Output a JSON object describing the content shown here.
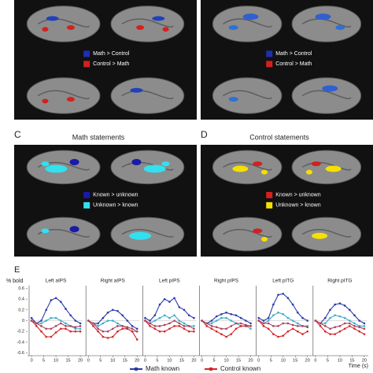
{
  "panels": [
    {
      "legend": [
        {
          "label": "Math > Control",
          "color": "#1f2fb0"
        },
        {
          "label": "Control > Math",
          "color": "#d42020"
        }
      ]
    },
    {
      "legend": [
        {
          "label": "Math > Control",
          "color": "#1f2fb0"
        },
        {
          "label": "Control > Math",
          "color": "#d42020"
        }
      ]
    },
    {
      "label": "C",
      "title": "Math statements",
      "legend": [
        {
          "label": "Known > unknown",
          "color": "#1a1aa8"
        },
        {
          "label": "Unknown > known",
          "color": "#33e0f0"
        }
      ]
    },
    {
      "label": "D",
      "title": "Control statements",
      "legend": [
        {
          "label": "Known > unknown",
          "color": "#d42020"
        },
        {
          "label": "Unknown > known",
          "color": "#f5e000"
        }
      ]
    }
  ],
  "chart_data": {
    "type": "line",
    "label": "E",
    "ylabel": "% bold",
    "xlabel": "Time (s)",
    "x": [
      0,
      2,
      4,
      6,
      8,
      10,
      12,
      14,
      16,
      18,
      20
    ],
    "xlim": [
      -1,
      21
    ],
    "xticks": [
      0,
      5,
      10,
      15,
      20
    ],
    "ylim": [
      -0.65,
      0.65
    ],
    "yticks": [
      0.6,
      0.4,
      0.2,
      0,
      -0.2,
      -0.4,
      -0.6
    ],
    "legend": [
      {
        "name": "Math known",
        "color": "#2b3aa8"
      },
      {
        "name": "Control known",
        "color": "#d42525"
      }
    ],
    "subplots": [
      {
        "title": "Left aIPS",
        "series": [
          {
            "color": "#2b3aa8",
            "values": [
              0.05,
              -0.05,
              0.0,
              0.2,
              0.38,
              0.42,
              0.35,
              0.22,
              0.1,
              0.0,
              -0.05
            ]
          },
          {
            "color": "#3aaec8",
            "values": [
              0.0,
              -0.05,
              -0.05,
              0.0,
              0.05,
              0.05,
              0.0,
              -0.05,
              -0.1,
              -0.15,
              -0.15
            ]
          },
          {
            "color": "#d42525",
            "values": [
              0.0,
              -0.1,
              -0.2,
              -0.3,
              -0.3,
              -0.22,
              -0.15,
              -0.15,
              -0.2,
              -0.2,
              -0.2
            ]
          },
          {
            "color": "#b04060",
            "values": [
              0.0,
              -0.05,
              -0.1,
              -0.15,
              -0.15,
              -0.1,
              -0.05,
              -0.1,
              -0.1,
              -0.12,
              -0.1
            ]
          }
        ]
      },
      {
        "title": "Right aIPS",
        "series": [
          {
            "color": "#2b3aa8",
            "values": [
              0.0,
              -0.05,
              -0.05,
              0.05,
              0.15,
              0.2,
              0.18,
              0.1,
              0.0,
              -0.1,
              -0.15
            ]
          },
          {
            "color": "#3aaec8",
            "values": [
              0.0,
              -0.05,
              -0.1,
              -0.05,
              0.0,
              0.0,
              -0.05,
              -0.1,
              -0.15,
              -0.2,
              -0.2
            ]
          },
          {
            "color": "#d42525",
            "values": [
              0.0,
              -0.1,
              -0.2,
              -0.3,
              -0.32,
              -0.3,
              -0.2,
              -0.15,
              -0.15,
              -0.2,
              -0.35
            ]
          },
          {
            "color": "#b04060",
            "values": [
              0.0,
              -0.05,
              -0.15,
              -0.2,
              -0.2,
              -0.15,
              -0.1,
              -0.1,
              -0.12,
              -0.15,
              -0.2
            ]
          }
        ]
      },
      {
        "title": "Left pIPS",
        "series": [
          {
            "color": "#2b3aa8",
            "values": [
              0.05,
              0.0,
              0.1,
              0.3,
              0.4,
              0.35,
              0.42,
              0.25,
              0.2,
              0.1,
              0.05
            ]
          },
          {
            "color": "#3aaec8",
            "values": [
              0.0,
              -0.05,
              0.0,
              0.05,
              0.1,
              0.05,
              0.1,
              0.0,
              -0.05,
              -0.1,
              -0.1
            ]
          },
          {
            "color": "#d42525",
            "values": [
              0.0,
              -0.1,
              -0.15,
              -0.2,
              -0.2,
              -0.15,
              -0.1,
              -0.1,
              -0.15,
              -0.2,
              -0.2
            ]
          },
          {
            "color": "#b04060",
            "values": [
              0.0,
              -0.05,
              -0.1,
              -0.1,
              -0.08,
              -0.05,
              0.0,
              -0.05,
              -0.1,
              -0.1,
              -0.15
            ]
          }
        ]
      },
      {
        "title": "Right pIPS",
        "series": [
          {
            "color": "#2b3aa8",
            "values": [
              0.0,
              -0.05,
              0.0,
              0.08,
              0.12,
              0.15,
              0.12,
              0.1,
              0.05,
              0.0,
              -0.05
            ]
          },
          {
            "color": "#3aaec8",
            "values": [
              0.0,
              -0.05,
              -0.05,
              0.0,
              0.05,
              0.05,
              0.0,
              -0.05,
              -0.1,
              -0.1,
              -0.15
            ]
          },
          {
            "color": "#d42525",
            "values": [
              0.0,
              -0.1,
              -0.15,
              -0.2,
              -0.25,
              -0.3,
              -0.25,
              -0.15,
              -0.1,
              -0.1,
              -0.1
            ]
          },
          {
            "color": "#b04060",
            "values": [
              0.0,
              -0.05,
              -0.1,
              -0.12,
              -0.15,
              -0.15,
              -0.1,
              -0.05,
              -0.05,
              -0.08,
              -0.1
            ]
          }
        ]
      },
      {
        "title": "Left pITG",
        "series": [
          {
            "color": "#2b3aa8",
            "values": [
              0.05,
              0.0,
              0.05,
              0.3,
              0.48,
              0.5,
              0.42,
              0.3,
              0.15,
              0.05,
              0.0
            ]
          },
          {
            "color": "#3aaec8",
            "values": [
              0.0,
              -0.05,
              0.0,
              0.1,
              0.15,
              0.12,
              0.05,
              0.0,
              -0.05,
              -0.1,
              -0.1
            ]
          },
          {
            "color": "#d42525",
            "values": [
              0.0,
              -0.1,
              -0.15,
              -0.25,
              -0.3,
              -0.28,
              -0.2,
              -0.15,
              -0.2,
              -0.25,
              -0.2
            ]
          },
          {
            "color": "#b04060",
            "values": [
              0.0,
              -0.05,
              -0.05,
              -0.1,
              -0.1,
              -0.05,
              -0.05,
              -0.08,
              -0.1,
              -0.1,
              -0.12
            ]
          }
        ]
      },
      {
        "title": "Right pITG",
        "series": [
          {
            "color": "#2b3aa8",
            "values": [
              0.0,
              -0.05,
              0.05,
              0.2,
              0.3,
              0.32,
              0.28,
              0.2,
              0.1,
              0.0,
              -0.05
            ]
          },
          {
            "color": "#3aaec8",
            "values": [
              0.0,
              -0.05,
              -0.05,
              0.05,
              0.1,
              0.08,
              0.05,
              0.0,
              -0.05,
              -0.1,
              -0.1
            ]
          },
          {
            "color": "#d42525",
            "values": [
              0.0,
              -0.1,
              -0.2,
              -0.25,
              -0.25,
              -0.2,
              -0.15,
              -0.1,
              -0.15,
              -0.2,
              -0.25
            ]
          },
          {
            "color": "#b04060",
            "values": [
              0.0,
              -0.05,
              -0.1,
              -0.15,
              -0.12,
              -0.1,
              -0.05,
              -0.05,
              -0.1,
              -0.12,
              -0.15
            ]
          }
        ]
      }
    ]
  }
}
